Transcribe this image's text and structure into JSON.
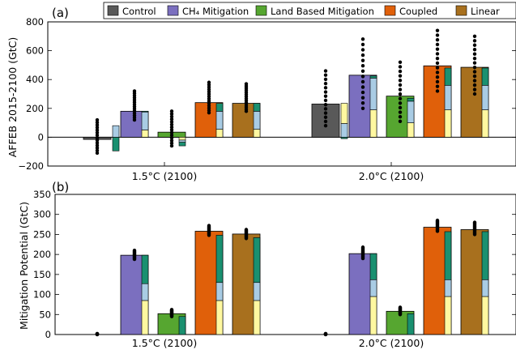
{
  "legend": [
    {
      "label": "Control",
      "color": "#595959"
    },
    {
      "label": "CH₄ Mitigation",
      "color": "#7b6fbf"
    },
    {
      "label": "Land Based Mitigation",
      "color": "#56a630"
    },
    {
      "label": "Coupled",
      "color": "#e0600a"
    },
    {
      "label": "Linear",
      "color": "#a8701e"
    }
  ],
  "component_colors": {
    "lower": "#fff8a0",
    "middle": "#a9cce4",
    "upper": "#1a9070"
  },
  "chart_data": [
    {
      "type": "bar",
      "panel_label": "(a)",
      "ylabel": "AFFEB 2015-2100 (GtC)",
      "ylim": [
        -200,
        800
      ],
      "yticks": [
        "−200",
        "0",
        "200",
        "400",
        "600",
        "800"
      ],
      "ytick_values": [
        -200,
        0,
        200,
        400,
        600,
        800
      ],
      "categories": [
        "1.5°C (2100)",
        "2.0°C (2100)"
      ],
      "series": [
        {
          "name": "Control",
          "values": [
            -15,
            230
          ],
          "components": [
            [
              0,
              0,
              0
            ],
            [
              0,
              0,
              0
            ]
          ],
          "stack_bottom": [
            0,
            0
          ],
          "ensemble_range": [
            [
              -110,
              120
            ],
            [
              80,
              460
            ]
          ]
        },
        {
          "name": "CH₄ Mitigation",
          "values": [
            180,
            430
          ],
          "components": [
            [
              50,
              125,
              5
            ],
            [
              190,
              220,
              15
            ]
          ],
          "stack_bottom": [
            0,
            0
          ],
          "ensemble_range": [
            [
              120,
              320
            ],
            [
              200,
              680
            ]
          ]
        },
        {
          "name": "Land Based Mitigation",
          "values": [
            35,
            285
          ],
          "components": [
            [
              -20,
              -15,
              -25
            ],
            [
              100,
              150,
              20
            ]
          ],
          "stack_bottom": [
            0,
            0
          ],
          "ensemble_range": [
            [
              -60,
              180
            ],
            [
              110,
              520
            ]
          ]
        },
        {
          "name": "Coupled",
          "values": [
            240,
            495
          ],
          "components": [
            [
              55,
              125,
              55
            ],
            [
              190,
              170,
              120
            ]
          ],
          "stack_bottom": [
            0,
            0
          ],
          "ensemble_range": [
            [
              170,
              380
            ],
            [
              320,
              740
            ]
          ]
        },
        {
          "name": "Linear",
          "values": [
            235,
            485
          ],
          "components": [
            [
              55,
              125,
              55
            ],
            [
              190,
              170,
              120
            ]
          ],
          "stack_bottom": [
            0,
            0
          ],
          "ensemble_range": [
            [
              180,
              370
            ],
            [
              300,
              700
            ]
          ]
        }
      ],
      "side_components": [
        {
          "components": [
            [
              -95,
              80,
              0
            ],
            [
              -10,
              95,
              140
            ]
          ]
        }
      ]
    },
    {
      "type": "bar",
      "panel_label": "(b)",
      "ylabel": "Mitigation Potential (GtC)",
      "ylim": [
        0,
        350
      ],
      "yticks": [
        "0",
        "50",
        "100",
        "150",
        "200",
        "250",
        "300",
        "350"
      ],
      "ytick_values": [
        0,
        50,
        100,
        150,
        200,
        250,
        300,
        350
      ],
      "categories": [
        "1.5°C (2100)",
        "2.0°C (2100)"
      ],
      "series": [
        {
          "name": "Control",
          "values": [
            0,
            0
          ],
          "components": [
            [
              0,
              0,
              0
            ],
            [
              0,
              0,
              0
            ]
          ],
          "ensemble_range": [
            [
              0,
              2
            ],
            [
              0,
              2
            ]
          ]
        },
        {
          "name": "CH₄ Mitigation",
          "values": [
            198,
            202
          ],
          "components": [
            [
              85,
              42,
              71
            ],
            [
              95,
              42,
              65
            ]
          ],
          "ensemble_range": [
            [
              188,
              210
            ],
            [
              190,
              218
            ]
          ]
        },
        {
          "name": "Land Based Mitigation",
          "values": [
            52,
            58
          ],
          "components": [
            [
              0,
              0,
              45
            ],
            [
              0,
              0,
              52
            ]
          ],
          "ensemble_range": [
            [
              45,
              62
            ],
            [
              50,
              68
            ]
          ]
        },
        {
          "name": "Coupled",
          "values": [
            258,
            268
          ],
          "components": [
            [
              85,
              45,
              118
            ],
            [
              95,
              42,
              120
            ]
          ],
          "ensemble_range": [
            [
              248,
              272
            ],
            [
              258,
              285
            ]
          ]
        },
        {
          "name": "Linear",
          "values": [
            251,
            262
          ],
          "components": [
            [
              85,
              45,
              112
            ],
            [
              95,
              42,
              120
            ]
          ],
          "ensemble_range": [
            [
              240,
              262
            ],
            [
              250,
              280
            ]
          ]
        }
      ]
    }
  ]
}
